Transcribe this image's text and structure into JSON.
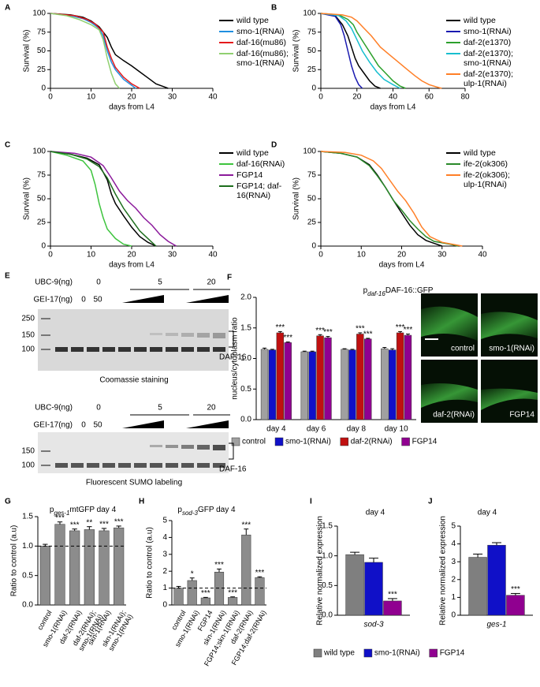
{
  "chart_data": [
    {
      "panel": "A",
      "type": "line",
      "xlabel": "days from L4",
      "ylabel": "Survival (%)",
      "xlim": [
        0,
        40
      ],
      "xticks": [
        0,
        10,
        20,
        30,
        40
      ],
      "ylim": [
        0,
        100
      ],
      "yticks": [
        0,
        25,
        50,
        75,
        100
      ],
      "series": [
        {
          "name": "wild type",
          "color": "#000000",
          "x": [
            0,
            5,
            8,
            10,
            12,
            14,
            15,
            16,
            18,
            20,
            22,
            24,
            26,
            28,
            29
          ],
          "values": [
            100,
            98,
            95,
            90,
            82,
            68,
            55,
            45,
            37,
            30,
            22,
            14,
            6,
            2,
            0
          ]
        },
        {
          "name": "smo-1(RNAi)",
          "color": "#1f8fe0",
          "x": [
            0,
            5,
            8,
            10,
            12,
            13,
            14,
            15,
            16,
            18,
            20,
            21
          ],
          "values": [
            100,
            97,
            93,
            88,
            80,
            70,
            50,
            35,
            25,
            12,
            4,
            0
          ]
        },
        {
          "name": "daf-16(mu86)",
          "color": "#e41a1c",
          "x": [
            0,
            6,
            9,
            11,
            13,
            14,
            15,
            16,
            18,
            20,
            22
          ],
          "values": [
            100,
            97,
            92,
            86,
            75,
            55,
            40,
            28,
            15,
            6,
            0
          ]
        },
        {
          "name": "daf-16(mu86); smo-1(RNAi)",
          "color": "#90d070",
          "x": [
            0,
            4,
            7,
            10,
            12,
            13,
            14,
            15,
            16,
            17
          ],
          "values": [
            100,
            97,
            92,
            85,
            78,
            65,
            40,
            20,
            6,
            0
          ]
        }
      ]
    },
    {
      "panel": "B",
      "type": "line",
      "xlabel": "days from L4",
      "ylabel": "Survival (%)",
      "xlim": [
        0,
        80
      ],
      "xticks": [
        0,
        20,
        40,
        60,
        80
      ],
      "ylim": [
        0,
        100
      ],
      "yticks": [
        0,
        25,
        50,
        75,
        100
      ],
      "series": [
        {
          "name": "wild type",
          "color": "#000000",
          "x": [
            0,
            8,
            12,
            15,
            17,
            19,
            21,
            24,
            27,
            30,
            33
          ],
          "values": [
            100,
            97,
            85,
            70,
            55,
            40,
            30,
            20,
            10,
            3,
            0
          ]
        },
        {
          "name": "smo-1(RNAi)",
          "color": "#1a1ab0",
          "x": [
            0,
            8,
            11,
            13,
            15,
            17,
            19,
            21,
            23
          ],
          "values": [
            100,
            96,
            85,
            70,
            50,
            30,
            15,
            5,
            0
          ]
        },
        {
          "name": "daf-2(e1370)",
          "color": "#2ca02c",
          "x": [
            0,
            10,
            15,
            18,
            20,
            24,
            28,
            32,
            36,
            40,
            44,
            47
          ],
          "values": [
            100,
            98,
            92,
            85,
            75,
            60,
            45,
            30,
            20,
            10,
            3,
            0
          ]
        },
        {
          "name": "daf-2(e1370); smo-1(RNAi)",
          "color": "#17becf",
          "x": [
            0,
            10,
            14,
            17,
            20,
            23,
            27,
            31,
            35,
            40,
            44
          ],
          "values": [
            100,
            97,
            90,
            80,
            65,
            50,
            35,
            22,
            12,
            5,
            0
          ]
        },
        {
          "name": "daf-2(e1370); ulp-1(RNAi)",
          "color": "#ff7f27",
          "x": [
            0,
            12,
            17,
            20,
            24,
            28,
            33,
            38,
            43,
            48,
            52,
            56,
            60,
            64,
            67
          ],
          "values": [
            100,
            98,
            95,
            90,
            80,
            70,
            55,
            45,
            35,
            25,
            17,
            10,
            5,
            2,
            0
          ]
        }
      ]
    },
    {
      "panel": "C",
      "type": "line",
      "xlabel": "days from L4",
      "ylabel": "Survival (%)",
      "xlim": [
        0,
        40
      ],
      "xticks": [
        0,
        10,
        20,
        30,
        40
      ],
      "ylim": [
        0,
        100
      ],
      "yticks": [
        0,
        25,
        50,
        75,
        100
      ],
      "series": [
        {
          "name": "wild type",
          "color": "#000000",
          "x": [
            0,
            5,
            9,
            12,
            14,
            15,
            16,
            18,
            20,
            22,
            24,
            26
          ],
          "values": [
            100,
            97,
            93,
            86,
            70,
            55,
            45,
            32,
            20,
            10,
            4,
            0
          ]
        },
        {
          "name": "daf-16(RNAi)",
          "color": "#3ec43e",
          "x": [
            0,
            4,
            8,
            10,
            11,
            12,
            13,
            14,
            16,
            18,
            20
          ],
          "values": [
            100,
            96,
            90,
            80,
            65,
            45,
            30,
            18,
            8,
            2,
            0
          ]
        },
        {
          "name": "FGP14",
          "color": "#8b1a9b",
          "x": [
            0,
            6,
            10,
            13,
            15,
            17,
            19,
            21,
            23,
            25,
            27,
            29,
            31
          ],
          "values": [
            100,
            98,
            94,
            85,
            72,
            58,
            48,
            40,
            30,
            22,
            12,
            5,
            0
          ]
        },
        {
          "name": "FGP14; daf-16(RNAi)",
          "color": "#1d6e1d",
          "x": [
            0,
            5,
            9,
            12,
            14,
            16,
            18,
            20,
            22,
            24,
            26
          ],
          "values": [
            100,
            97,
            92,
            84,
            72,
            55,
            40,
            28,
            16,
            8,
            0
          ]
        }
      ]
    },
    {
      "panel": "D",
      "type": "line",
      "xlabel": "days from L4",
      "ylabel": "Survival (%)",
      "xlim": [
        0,
        40
      ],
      "xticks": [
        0,
        10,
        20,
        30,
        40
      ],
      "ylim": [
        0,
        100
      ],
      "yticks": [
        0,
        25,
        50,
        75,
        100
      ],
      "series": [
        {
          "name": "wild type",
          "color": "#000000",
          "x": [
            0,
            5,
            9,
            12,
            14,
            16,
            18,
            20,
            22,
            24,
            26,
            28,
            30
          ],
          "values": [
            100,
            98,
            94,
            86,
            75,
            62,
            48,
            35,
            22,
            12,
            6,
            3,
            0
          ]
        },
        {
          "name": "ife-2(ok306)",
          "color": "#2a8a2a",
          "x": [
            0,
            5,
            9,
            12,
            14,
            16,
            18,
            20,
            22,
            24,
            26,
            28,
            32,
            34
          ],
          "values": [
            100,
            98,
            94,
            85,
            74,
            62,
            48,
            38,
            27,
            18,
            10,
            5,
            2,
            0
          ]
        },
        {
          "name": "ife-2(ok306); ulp-1(RNAi)",
          "color": "#ff7f27",
          "x": [
            0,
            6,
            10,
            13,
            15,
            17,
            19,
            21,
            23,
            25,
            27,
            30,
            35
          ],
          "values": [
            100,
            99,
            96,
            90,
            82,
            70,
            58,
            48,
            35,
            20,
            10,
            4,
            0
          ]
        }
      ]
    },
    {
      "panel": "F",
      "type": "bar",
      "title": [
        "p",
        "daf-16",
        "DAF-16::GFP"
      ],
      "ylabel": "nucleus/cytoplasm ratio",
      "categories": [
        "day 4",
        "day 6",
        "day 8",
        "day 10"
      ],
      "ylim": [
        0,
        2
      ],
      "yticks": [
        {
          "value": 0,
          "label": "0.0"
        },
        {
          "value": 0.5,
          "label": "0.5"
        },
        {
          "value": 1,
          "label": "1.0"
        },
        {
          "value": 1.5,
          "label": "1.5"
        },
        {
          "value": 2,
          "label": "2.0"
        }
      ],
      "legend": "bottom",
      "series": [
        {
          "name": "control",
          "color": "#a0a0a0",
          "values": [
            1.15,
            1.11,
            1.15,
            1.16
          ],
          "errors": [
            0.02,
            0.01,
            0.01,
            0.02
          ],
          "annotations": [
            null,
            null,
            null,
            null
          ]
        },
        {
          "name": "smo-1(RNAi)",
          "color": "#1010c8",
          "values": [
            1.14,
            1.11,
            1.14,
            1.14
          ],
          "errors": [
            0.01,
            0.01,
            0.01,
            0.02
          ],
          "annotations": [
            null,
            null,
            null,
            null
          ]
        },
        {
          "name": "daf-2(RNAi)",
          "color": "#c01010",
          "values": [
            1.42,
            1.37,
            1.4,
            1.42
          ],
          "errors": [
            0.02,
            0.02,
            0.02,
            0.02
          ],
          "annotations": [
            "***",
            "***",
            "***",
            "***"
          ]
        },
        {
          "name": "FGP14",
          "color": "#900090",
          "values": [
            1.26,
            1.34,
            1.32,
            1.38
          ],
          "errors": [
            0.01,
            0.02,
            0.01,
            0.02
          ],
          "annotations": [
            "***",
            "***",
            "***",
            "***"
          ]
        }
      ],
      "image_labels": [
        "control",
        "smo-1(RNAi)",
        "daf-2(RNAi)",
        "FGP14"
      ]
    },
    {
      "panel": "G",
      "type": "bar",
      "title": [
        "p",
        "ges-1",
        "mtGFP day 4"
      ],
      "ylabel": "Ratio to control (a.u)",
      "categories": [
        "control",
        "smo-1(RNAi)",
        "daf-2(RNAi)",
        "daf-2(RNAi); smo-1(RNAi)",
        "skn-1(RNAi)",
        "skn-1(RNAi); smo-1(RNAi)"
      ],
      "values": [
        1.0,
        1.37,
        1.26,
        1.28,
        1.26,
        1.31
      ],
      "errors": [
        0.03,
        0.04,
        0.03,
        0.05,
        0.04,
        0.03
      ],
      "annotations": [
        null,
        "***",
        "***",
        "**",
        "***",
        "***"
      ],
      "color": "#8c8c8c",
      "ylim": [
        0,
        1.5
      ],
      "yticks": [
        {
          "value": 0,
          "label": "0.0"
        },
        {
          "value": 0.5,
          "label": "0.5"
        },
        {
          "value": 1,
          "label": "1.0"
        },
        {
          "value": 1.5,
          "label": "1.5"
        }
      ],
      "reference_line": 1
    },
    {
      "panel": "H",
      "type": "bar",
      "title": [
        "p",
        "sod-3",
        "GFP day 4"
      ],
      "ylabel": "Ratio to control (a.u)",
      "categories": [
        "control",
        "smo-1(RNAi)",
        "FGP14",
        "skn-1(RNAi)",
        "FGP14;skn-1(RNAi)",
        "daf-2(RNAi)",
        "FGP14;daf-2(RNAi)"
      ],
      "values": [
        1.0,
        1.45,
        0.42,
        1.95,
        0.45,
        4.15,
        1.62
      ],
      "errors": [
        0.1,
        0.15,
        0.03,
        0.18,
        0.03,
        0.35,
        0.05
      ],
      "annotations": [
        null,
        "*",
        "***",
        "***",
        "***",
        "***",
        "***"
      ],
      "color": "#8c8c8c",
      "ylim": [
        0,
        5
      ],
      "yticks": [
        0,
        1,
        2,
        3,
        4,
        5
      ],
      "reference_line": 1
    },
    {
      "panel": "I",
      "type": "bar",
      "title": "day 4",
      "ylabel": "Relative normalized expression",
      "categories": [
        "sod-3"
      ],
      "legend": "bottom",
      "ylim": [
        0,
        1.5
      ],
      "yticks": [
        {
          "value": 0,
          "label": "0.0"
        },
        {
          "value": 0.5,
          "label": "0.5"
        },
        {
          "value": 1,
          "label": "1.0"
        },
        {
          "value": 1.5,
          "label": "1.5"
        }
      ],
      "series": [
        {
          "name": "wild type",
          "color": "#7f7f7f",
          "values": [
            1.02
          ],
          "errors": [
            0.04
          ],
          "annotations": [
            null
          ]
        },
        {
          "name": "smo-1(RNAi)",
          "color": "#1010c8",
          "values": [
            0.89
          ],
          "errors": [
            0.07
          ],
          "annotations": [
            null
          ]
        },
        {
          "name": "FGP14",
          "color": "#900090",
          "values": [
            0.24
          ],
          "errors": [
            0.04
          ],
          "annotations": [
            "***"
          ]
        }
      ]
    },
    {
      "panel": "J",
      "type": "bar",
      "title": "day 4",
      "ylabel": "Relative normalized expression",
      "categories": [
        "ges-1"
      ],
      "ylim": [
        0,
        5
      ],
      "yticks": [
        0,
        1,
        2,
        3,
        4,
        5
      ],
      "series": [
        {
          "color": "#7f7f7f",
          "values": [
            3.25
          ],
          "errors": [
            0.18
          ],
          "annotations": [
            null
          ]
        },
        {
          "color": "#1010c8",
          "values": [
            3.93
          ],
          "errors": [
            0.14
          ],
          "annotations": [
            null
          ]
        },
        {
          "color": "#900090",
          "values": [
            1.12
          ],
          "errors": [
            0.1
          ],
          "annotations": [
            "***"
          ]
        }
      ]
    }
  ],
  "gel_figure": {
    "panel": "E",
    "blots": [
      {
        "ubc9_label": "UBC-9(ng)",
        "ubc9_groups": [
          "0",
          "5",
          "20"
        ],
        "gei17_label": "GEI-17(ng)",
        "gei17_values": [
          "0",
          "50"
        ],
        "markers": [
          "250",
          "150",
          "100"
        ],
        "band_label": "DAF-16",
        "caption": "Coomassie staining"
      },
      {
        "ubc9_label": "UBC-9(ng)",
        "ubc9_groups": [
          "0",
          "5",
          "20"
        ],
        "gei17_label": "GEI-17(ng)",
        "gei17_values": [
          "0",
          "50"
        ],
        "markers": [
          "150",
          "100"
        ],
        "band_label": "DAF-16",
        "caption": "Fluorescent SUMO labeling"
      }
    ]
  }
}
